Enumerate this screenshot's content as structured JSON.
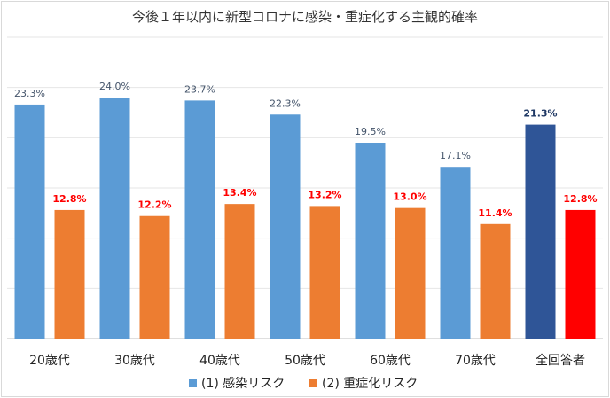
{
  "chart_data": {
    "type": "bar",
    "title": "今後１年以内に新型コロナに感染・重症化する主観的確率",
    "categories": [
      "20歳代",
      "30歳代",
      "40歳代",
      "50歳代",
      "60歳代",
      "70歳代",
      "全回答者"
    ],
    "series": [
      {
        "name": "(1) 感染リスク",
        "values": [
          23.3,
          24.0,
          23.7,
          22.3,
          19.5,
          17.1,
          21.3
        ],
        "labels": [
          "23.3%",
          "24.0%",
          "23.7%",
          "22.3%",
          "19.5%",
          "17.1%",
          "21.3%"
        ],
        "color": "#5b9bd5",
        "highlight_color": "#2f5597",
        "label_color": "#44546a",
        "highlight_label_color": "#1f3864"
      },
      {
        "name": "(2) 重症化リスク",
        "values": [
          12.8,
          12.2,
          13.4,
          13.2,
          13.0,
          11.4,
          12.8
        ],
        "labels": [
          "12.8%",
          "12.2%",
          "13.4%",
          "13.2%",
          "13.0%",
          "11.4%",
          "12.8%"
        ],
        "color": "#ed7d31",
        "highlight_color": "#ff0000",
        "label_color": "#ff0000",
        "highlight_label_color": "#ff0000"
      }
    ],
    "highlight_category_index": 6,
    "ylim": [
      0,
      30
    ],
    "gridline_step": 5,
    "grid": true,
    "legend_position": "bottom"
  }
}
